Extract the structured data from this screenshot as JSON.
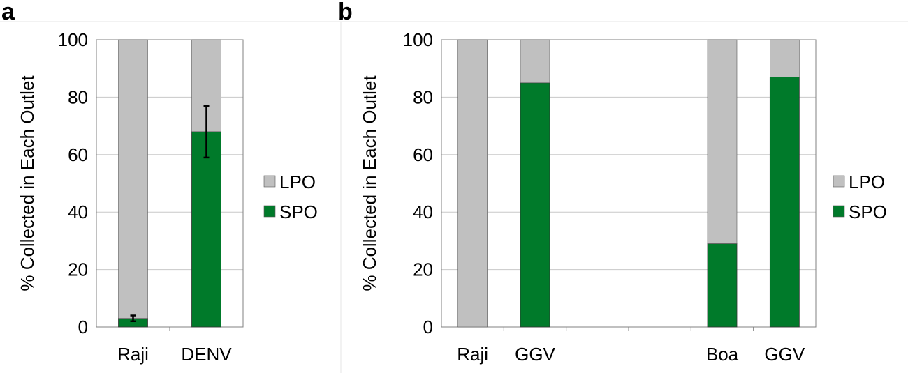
{
  "colors": {
    "LPO": "#c0c0c0",
    "SPO": "#007a2a",
    "grid": "#c8c8c8",
    "axis": "#808080"
  },
  "chart_data": [
    {
      "panel": "a",
      "type": "bar",
      "stacked": true,
      "ylabel": "% Collected in Each Outlet",
      "ylim": [
        0,
        100
      ],
      "yticks": [
        0,
        20,
        40,
        60,
        80,
        100
      ],
      "grid": true,
      "legend": "right",
      "categories": [
        "Raji",
        "DENV"
      ],
      "series": [
        {
          "name": "SPO",
          "values": [
            3,
            68
          ],
          "errors": [
            1,
            9
          ]
        },
        {
          "name": "LPO",
          "values": [
            97,
            32
          ]
        }
      ]
    },
    {
      "panel": "b",
      "type": "bar",
      "stacked": true,
      "ylabel": "% Collected in Each Outlet",
      "ylim": [
        0,
        100
      ],
      "yticks": [
        0,
        20,
        40,
        60,
        80,
        100
      ],
      "grid": true,
      "legend": "right",
      "categories": [
        "Raji",
        "GGV",
        "",
        "",
        "Boa",
        "GGV"
      ],
      "series": [
        {
          "name": "SPO",
          "values": [
            0,
            85,
            null,
            null,
            29,
            87
          ]
        },
        {
          "name": "LPO",
          "values": [
            100,
            15,
            null,
            null,
            71,
            13
          ]
        }
      ]
    }
  ]
}
